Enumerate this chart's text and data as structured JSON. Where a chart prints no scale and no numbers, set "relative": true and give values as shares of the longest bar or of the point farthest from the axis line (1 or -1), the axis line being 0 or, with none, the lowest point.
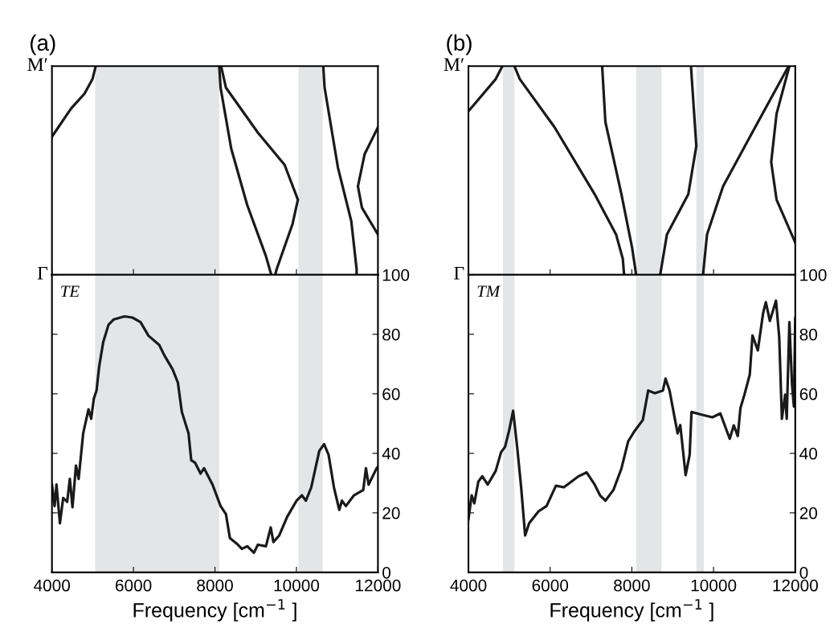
{
  "chart_data": [
    {
      "type": "line",
      "title": "(a)",
      "xlim": [
        4000,
        12000
      ],
      "xticks": [
        4000,
        6000,
        8000,
        10000,
        12000
      ],
      "relative": true,
      "annotations": [
        "M′",
        "Γ"
      ],
      "tick_labels": false,
      "grid": false,
      "bands": [
        {
          "axis": "x",
          "from": 5061,
          "to": 8105,
          "color": "#e4e5e7"
        },
        {
          "axis": "x",
          "from": 10049,
          "to": 10645,
          "color": "#e4e5e7"
        }
      ],
      "series": [
        {
          "color": "#1a1a1a",
          "x": [
            4000,
            4471,
            4799,
            4995,
            5074
          ],
          "values": [
            0.662,
            0.797,
            0.868,
            0.938,
            1
          ]
        },
        {
          "color": "#1a1a1a",
          "x": [
            8105,
            8138,
            8400,
            8792,
            9250,
            9382
          ],
          "values": [
            1,
            0.897,
            0.604,
            0.334,
            0.09,
            0
          ]
        },
        {
          "color": "#1a1a1a",
          "x": [
            8151,
            8269,
            9054,
            9709,
            10036,
            9905,
            9513,
            9480
          ],
          "values": [
            1,
            0.897,
            0.681,
            0.527,
            0.36,
            0.244,
            0.026,
            0
          ]
        },
        {
          "color": "#1a1a1a",
          "x": [
            10658,
            10691,
            11018,
            11346,
            11477,
            11477
          ],
          "values": [
            1,
            0.897,
            0.514,
            0.257,
            0.026,
            0
          ]
        },
        {
          "color": "#1a1a1a",
          "x": [
            12000,
            11673,
            11509,
            11608,
            12000
          ],
          "values": [
            0.707,
            0.578,
            0.424,
            0.321,
            0.193
          ]
        }
      ]
    },
    {
      "type": "line",
      "title": "(b)",
      "xlim": [
        4000,
        12000
      ],
      "xticks": [
        4000,
        6000,
        8000,
        10000,
        12000
      ],
      "relative": true,
      "annotations": [
        "M′",
        "Γ"
      ],
      "tick_labels": false,
      "grid": false,
      "bands": [
        {
          "axis": "x",
          "from": 4845,
          "to": 5126,
          "color": "#e4e5e7"
        },
        {
          "axis": "x",
          "from": 8105,
          "to": 8727,
          "color": "#e4e5e7"
        },
        {
          "axis": "x",
          "from": 9578,
          "to": 9761,
          "color": "#e4e5e7"
        }
      ],
      "series": [
        {
          "color": "#1a1a1a",
          "x": [
            4000,
            4668,
            4831
          ],
          "values": [
            0.784,
            0.938,
            1
          ]
        },
        {
          "color": "#1a1a1a",
          "x": [
            5126,
            5257,
            6108,
            7090,
            7614,
            7778,
            7810
          ],
          "values": [
            1,
            0.938,
            0.707,
            0.386,
            0.193,
            0.077,
            0
          ]
        },
        {
          "color": "#1a1a1a",
          "x": [
            7273,
            7352,
            7745,
            8007,
            8105
          ],
          "values": [
            1,
            0.733,
            0.386,
            0.129,
            0
          ]
        },
        {
          "color": "#1a1a1a",
          "x": [
            9447,
            9578,
            9382,
            8858,
            8694
          ],
          "values": [
            1,
            0.617,
            0.386,
            0.193,
            0
          ]
        },
        {
          "color": "#1a1a1a",
          "x": [
            11837,
            11018,
            10233,
            9840,
            9742
          ],
          "values": [
            1,
            0.707,
            0.424,
            0.193,
            0
          ]
        },
        {
          "color": "#1a1a1a",
          "x": [
            11856,
            11542,
            11411,
            11542,
            12000
          ],
          "values": [
            1,
            0.771,
            0.54,
            0.36,
            0.154
          ]
        }
      ]
    },
    {
      "type": "line",
      "xlabel": "Frequency [cm$^{−1}$ ]",
      "xlim": [
        4000,
        12000
      ],
      "xticks": [
        4000,
        6000,
        8000,
        10000,
        12000
      ],
      "ylim": [
        0,
        100
      ],
      "yticks": [
        0,
        20,
        40,
        60,
        80,
        100
      ],
      "grid": false,
      "annotations": [
        "TE"
      ],
      "bands": [
        {
          "axis": "x",
          "from": 5061,
          "to": 8105,
          "color": "#e4e5e7"
        },
        {
          "axis": "x",
          "from": 10049,
          "to": 10645,
          "color": "#e4e5e7"
        }
      ],
      "series": [
        {
          "color": "#1a1a1a",
          "x": [
            4000,
            4065,
            4111,
            4196,
            4275,
            4373,
            4439,
            4504,
            4589,
            4655,
            4766,
            4897,
            4963,
            5028,
            5094,
            5159,
            5257,
            5388,
            5519,
            5781,
            5977,
            6173,
            6370,
            6632,
            6763,
            6959,
            7090,
            7188,
            7352,
            7418,
            7516,
            7647,
            7732,
            7941,
            8138,
            8269,
            8367,
            8531,
            8662,
            8793,
            8956,
            9054,
            9251,
            9369,
            9434,
            9578,
            9774,
            10003,
            10134,
            10233,
            10364,
            10560,
            10678,
            10789,
            10920,
            11051,
            11116,
            11214,
            11411,
            11640,
            11705,
            11771,
            11967,
            12000
          ],
          "values": [
            29.5,
            22.3,
            29.5,
            16.5,
            25,
            23.7,
            31.4,
            21.9,
            35.9,
            31.4,
            46.7,
            54.8,
            51.6,
            58.4,
            61.1,
            69.2,
            77.3,
            83.2,
            85,
            86,
            85.6,
            84.1,
            79.5,
            76.4,
            72.8,
            68.3,
            63.8,
            53.9,
            46.7,
            37.7,
            36.8,
            33.2,
            35,
            29.5,
            22.3,
            19.6,
            11.5,
            9.7,
            7.9,
            8.8,
            6.6,
            9.3,
            8.8,
            15.1,
            10.2,
            12.4,
            18.7,
            24.1,
            25.9,
            24.1,
            28.6,
            40.8,
            43.1,
            39.5,
            28.6,
            21,
            24.1,
            22.3,
            25.9,
            27.7,
            35,
            29.5,
            35,
            35.4
          ]
        }
      ]
    },
    {
      "type": "line",
      "xlabel": "Frequency [cm$^{−1}$ ]",
      "xlim": [
        4000,
        12000
      ],
      "xticks": [
        4000,
        6000,
        8000,
        10000,
        12000
      ],
      "ylim": [
        0,
        100
      ],
      "yticks": [
        0,
        20,
        40,
        60,
        80,
        100
      ],
      "grid": false,
      "annotations": [
        "TM"
      ],
      "bands": [
        {
          "axis": "x",
          "from": 4845,
          "to": 5126,
          "color": "#e4e5e7"
        },
        {
          "axis": "x",
          "from": 8105,
          "to": 8727,
          "color": "#e4e5e7"
        },
        {
          "axis": "x",
          "from": 9578,
          "to": 9761,
          "color": "#e4e5e7"
        }
      ],
      "series": [
        {
          "color": "#1a1a1a",
          "x": [
            4000,
            4079,
            4144,
            4242,
            4340,
            4471,
            4668,
            4799,
            4897,
            4995,
            5094,
            5192,
            5290,
            5388,
            5486,
            5715,
            5912,
            6141,
            6337,
            6697,
            6894,
            7090,
            7221,
            7352,
            7549,
            7745,
            7909,
            8072,
            8269,
            8400,
            8563,
            8760,
            8825,
            8923,
            9021,
            9120,
            9185,
            9316,
            9415,
            9460,
            9709,
            9971,
            10167,
            10396,
            10495,
            10593,
            10658,
            10756,
            10887,
            10953,
            11084,
            11214,
            11280,
            11378,
            11528,
            11607,
            11673,
            11752,
            11791,
            11856,
            11922,
            11967,
            12000
          ],
          "values": [
            17.8,
            25.9,
            23.2,
            30.5,
            32.3,
            29.5,
            34.1,
            40.4,
            42.2,
            47.6,
            54.3,
            42.2,
            28.6,
            12.4,
            16.5,
            20.5,
            22.3,
            29.1,
            28.6,
            32.3,
            33.6,
            29.5,
            25.9,
            24.1,
            27.7,
            34.9,
            44,
            47.6,
            51.2,
            61.1,
            60.2,
            61.1,
            65.1,
            61.1,
            53.9,
            46.7,
            49.5,
            32.7,
            39.5,
            53.9,
            53,
            52.1,
            53.4,
            44.9,
            49.4,
            45.8,
            55.2,
            59.7,
            66.5,
            79.6,
            74.6,
            87.2,
            90.8,
            84.5,
            91.3,
            79.1,
            51.6,
            59.7,
            51.6,
            84.1,
            62.9,
            55.7,
            85.4
          ]
        }
      ]
    }
  ]
}
